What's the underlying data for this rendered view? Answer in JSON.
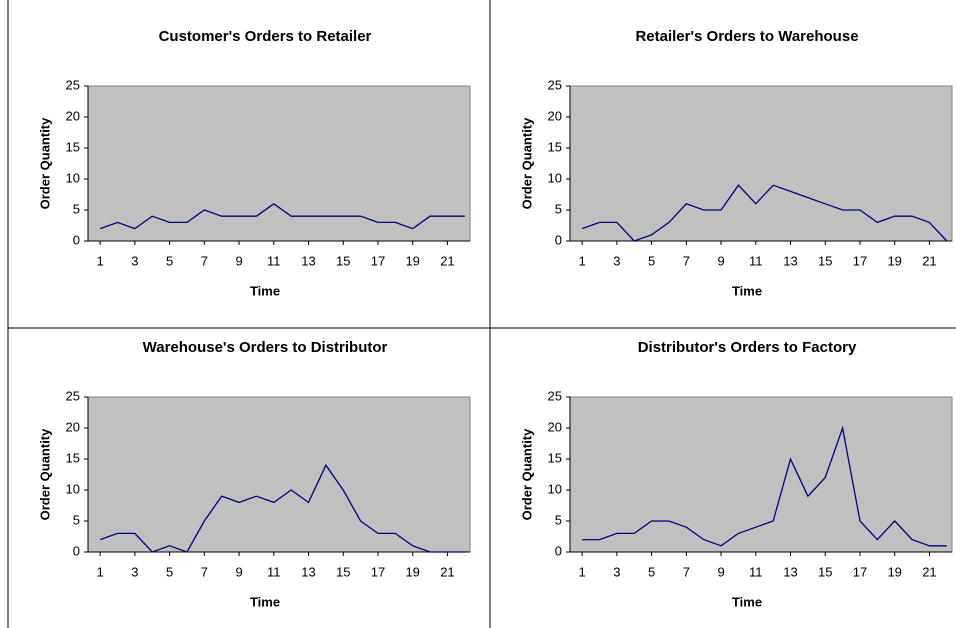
{
  "chart_data": [
    {
      "type": "line",
      "title": "Customer's Orders to Retailer",
      "xlabel": "Time",
      "ylabel": "Order Quantity",
      "x": [
        1,
        2,
        3,
        4,
        5,
        6,
        7,
        8,
        9,
        10,
        11,
        12,
        13,
        14,
        15,
        16,
        17,
        18,
        19,
        20,
        21,
        22
      ],
      "values": [
        2,
        3,
        2,
        4,
        3,
        3,
        5,
        4,
        4,
        4,
        6,
        4,
        4,
        4,
        4,
        4,
        3,
        3,
        2,
        4,
        4,
        4
      ],
      "color": "#000080",
      "xlim": [
        0.3,
        22.3
      ],
      "xticks": [
        1,
        3,
        5,
        7,
        9,
        11,
        13,
        15,
        17,
        19,
        21
      ],
      "ylim": [
        0,
        25
      ],
      "yticks": [
        0,
        5,
        10,
        15,
        20,
        25
      ],
      "plot_background": "#c0c0c0"
    },
    {
      "type": "line",
      "title": "Retailer's Orders to Warehouse",
      "xlabel": "Time",
      "ylabel": "Order Quantity",
      "x": [
        1,
        2,
        3,
        4,
        5,
        6,
        7,
        8,
        9,
        10,
        11,
        12,
        13,
        14,
        15,
        16,
        17,
        18,
        19,
        20,
        21,
        22
      ],
      "values": [
        2,
        3,
        3,
        0,
        1,
        3,
        6,
        5,
        5,
        9,
        6,
        9,
        8,
        7,
        6,
        5,
        5,
        3,
        4,
        4,
        3,
        0
      ],
      "color": "#000080",
      "xlim": [
        0.3,
        22.3
      ],
      "xticks": [
        1,
        3,
        5,
        7,
        9,
        11,
        13,
        15,
        17,
        19,
        21
      ],
      "ylim": [
        0,
        25
      ],
      "yticks": [
        0,
        5,
        10,
        15,
        20,
        25
      ],
      "plot_background": "#c0c0c0"
    },
    {
      "type": "line",
      "title": "Warehouse's Orders to Distributor",
      "xlabel": "Time",
      "ylabel": "Order Quantity",
      "x": [
        1,
        2,
        3,
        4,
        5,
        6,
        7,
        8,
        9,
        10,
        11,
        12,
        13,
        14,
        15,
        16,
        17,
        18,
        19,
        20,
        21,
        22
      ],
      "values": [
        2,
        3,
        3,
        0,
        1,
        0,
        5,
        9,
        8,
        9,
        8,
        10,
        8,
        14,
        10,
        5,
        3,
        3,
        1,
        0,
        0,
        0
      ],
      "color": "#000080",
      "xlim": [
        0.3,
        22.3
      ],
      "xticks": [
        1,
        3,
        5,
        7,
        9,
        11,
        13,
        15,
        17,
        19,
        21
      ],
      "ylim": [
        0,
        25
      ],
      "yticks": [
        0,
        5,
        10,
        15,
        20,
        25
      ],
      "plot_background": "#c0c0c0"
    },
    {
      "type": "line",
      "title": "Distributor's Orders to Factory",
      "xlabel": "Time",
      "ylabel": "Order Quantity",
      "x": [
        1,
        2,
        3,
        4,
        5,
        6,
        7,
        8,
        9,
        10,
        11,
        12,
        13,
        14,
        15,
        16,
        17,
        18,
        19,
        20,
        21,
        22
      ],
      "values": [
        2,
        2,
        3,
        3,
        5,
        5,
        4,
        2,
        1,
        3,
        4,
        5,
        15,
        9,
        12,
        20,
        5,
        2,
        5,
        2,
        1,
        1
      ],
      "color": "#000080",
      "xlim": [
        0.3,
        22.3
      ],
      "xticks": [
        1,
        3,
        5,
        7,
        9,
        11,
        13,
        15,
        17,
        19,
        21
      ],
      "ylim": [
        0,
        25
      ],
      "yticks": [
        0,
        5,
        10,
        15,
        20,
        25
      ],
      "plot_background": "#c0c0c0"
    }
  ]
}
